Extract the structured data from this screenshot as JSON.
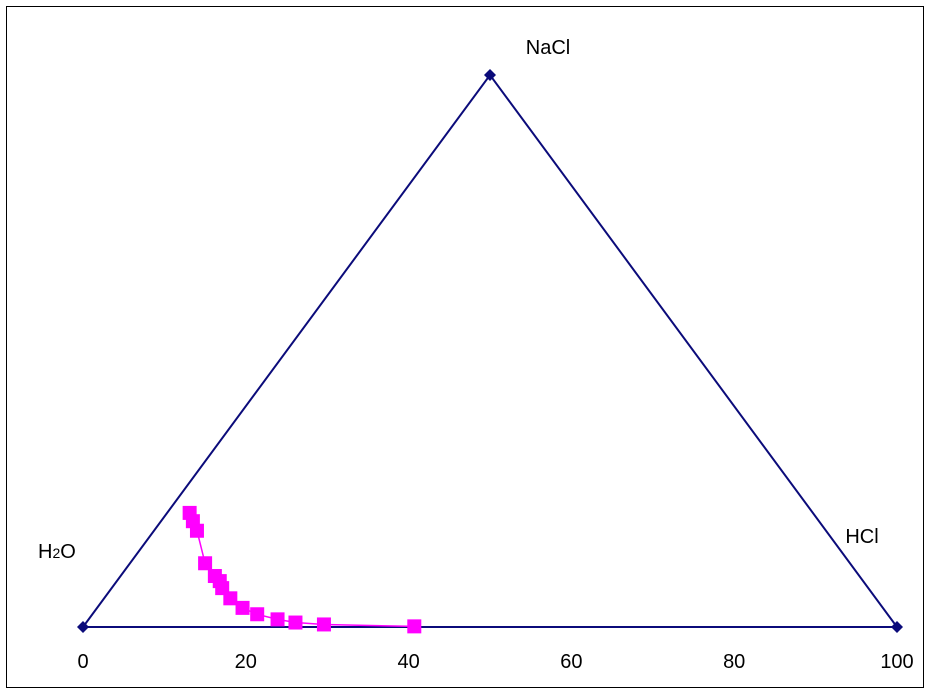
{
  "chart_data": {
    "type": "scatter",
    "title": "",
    "vertex_labels": {
      "bottom_left": "H2O",
      "top": "NaCl",
      "bottom_right": "HCl"
    },
    "vertex_label_parts": {
      "h2o_base": "H",
      "h2o_sub": "2",
      "h2o_end": "O"
    },
    "x_ticks": [
      "0",
      "20",
      "40",
      "60",
      "80",
      "100"
    ],
    "xlim": [
      0,
      100
    ],
    "grid": false,
    "series": [
      {
        "role": "triangle-outline",
        "color": "#0b0b7a",
        "marker": "diamond",
        "points": [
          {
            "x": 0,
            "y": 0
          },
          {
            "x": 50,
            "y": 86.6
          },
          {
            "x": 100,
            "y": 0
          },
          {
            "x": 0,
            "y": 0
          }
        ]
      },
      {
        "role": "solubility-curve",
        "color": "#ff00ff",
        "marker": "square",
        "points": [
          {
            "x": 13.1,
            "y": 17.9
          },
          {
            "x": 13.5,
            "y": 16.6
          },
          {
            "x": 14.0,
            "y": 15.1
          },
          {
            "x": 15.0,
            "y": 10.0
          },
          {
            "x": 16.2,
            "y": 8.0
          },
          {
            "x": 16.8,
            "y": 7.2
          },
          {
            "x": 17.1,
            "y": 6.1
          },
          {
            "x": 18.1,
            "y": 4.5
          },
          {
            "x": 19.6,
            "y": 3.0
          },
          {
            "x": 21.4,
            "y": 2.0
          },
          {
            "x": 23.9,
            "y": 1.2
          },
          {
            "x": 26.1,
            "y": 0.7
          },
          {
            "x": 29.6,
            "y": 0.4
          },
          {
            "x": 40.7,
            "y": 0.1
          }
        ]
      }
    ]
  }
}
